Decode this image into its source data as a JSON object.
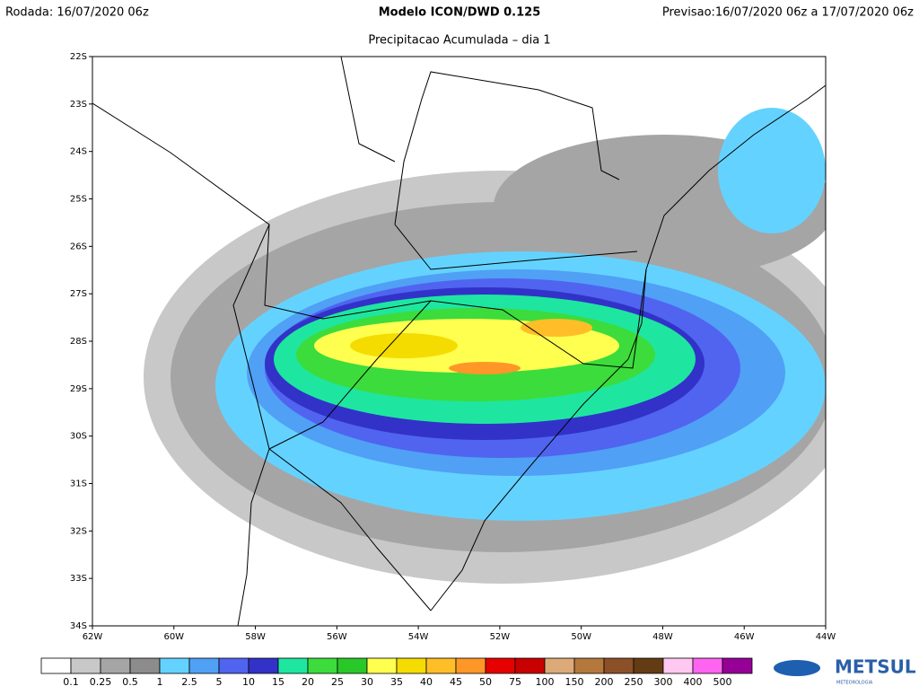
{
  "header": {
    "run": "Rodada: 16/07/2020 06z",
    "model": "Modelo ICON/DWD 0.125",
    "forecast": "Previsao:16/07/2020 06z a 17/07/2020 06z",
    "subtitle": "Precipitacao Acumulada – dia 1"
  },
  "map": {
    "lon_labels": [
      "62W",
      "60W",
      "58W",
      "56W",
      "54W",
      "52W",
      "50W",
      "48W",
      "46W",
      "44W"
    ],
    "lat_labels": [
      "22S",
      "23S",
      "24S",
      "25S",
      "26S",
      "27S",
      "28S",
      "29S",
      "30S",
      "31S",
      "32S",
      "33S",
      "34S"
    ]
  },
  "legend": {
    "colors": [
      "#ffffff",
      "#c8c8c8",
      "#a5a5a5",
      "#8c8c8c",
      "#64d2ff",
      "#50a0f5",
      "#5064f0",
      "#3232c8",
      "#1ee6a0",
      "#3cdc3c",
      "#28c828",
      "#ffff50",
      "#f5dc00",
      "#ffbe28",
      "#ff9628",
      "#e60000",
      "#c80000",
      "#dcaa78",
      "#b4783c",
      "#8c5028",
      "#643c14",
      "#ffc8f0",
      "#ff64f0",
      "#960096"
    ],
    "thresholds": [
      0.1,
      0.25,
      0.5,
      1,
      2.5,
      5,
      10,
      15,
      20,
      25,
      30,
      35,
      40,
      45,
      50,
      75,
      100,
      150,
      200,
      250,
      300,
      400,
      500
    ]
  },
  "logo": {
    "name": "METSUL",
    "tagline": "METEOROLOGIA"
  }
}
